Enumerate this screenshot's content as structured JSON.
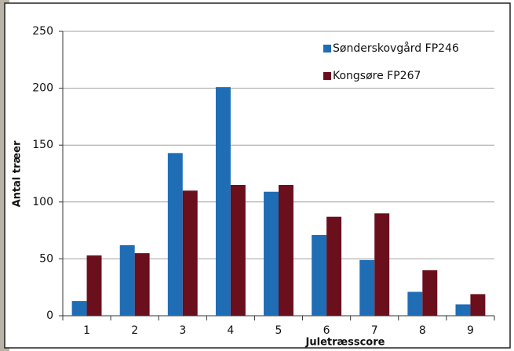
{
  "chart_data": {
    "type": "bar",
    "x_label": "Juletræsscore",
    "y_label": "Antal træer",
    "categories": [
      "1",
      "2",
      "3",
      "4",
      "5",
      "6",
      "7",
      "8",
      "9"
    ],
    "series": [
      {
        "name": "Sønderskovgård FP246",
        "color": "#1f6db5",
        "values": [
          13,
          62,
          143,
          201,
          109,
          71,
          49,
          21,
          10
        ]
      },
      {
        "name": "Kongsøre FP267",
        "color": "#6b0f1c",
        "values": [
          53,
          55,
          110,
          115,
          115,
          87,
          90,
          40,
          19
        ]
      }
    ],
    "ylim": [
      0,
      250
    ],
    "yticks": [
      0,
      50,
      100,
      150,
      200,
      250
    ],
    "grid": true
  }
}
